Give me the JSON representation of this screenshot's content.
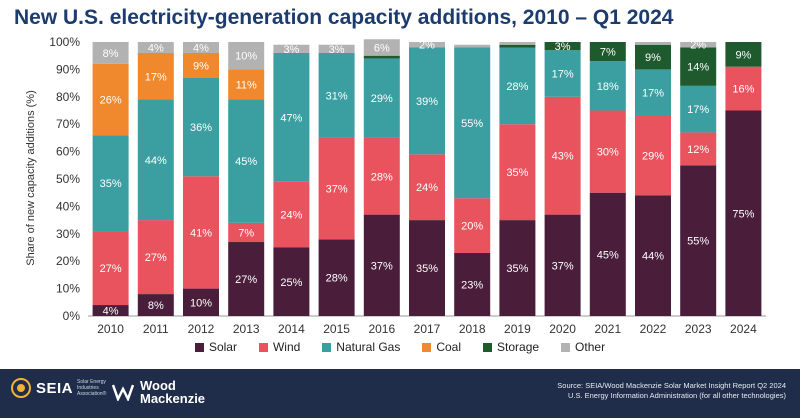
{
  "title": "New U.S. electricity-generation capacity additions, 2010 – Q1 2024",
  "chart_data": {
    "type": "bar",
    "stacked": true,
    "categories": [
      "2010",
      "2011",
      "2012",
      "2013",
      "2014",
      "2015",
      "2016",
      "2017",
      "2018",
      "2019",
      "2020",
      "2021",
      "2022",
      "2023",
      "2024"
    ],
    "ylabel": "Share of new capacity additions (%)",
    "ylim": [
      0,
      100
    ],
    "yticks": [
      "0%",
      "10%",
      "20%",
      "30%",
      "40%",
      "50%",
      "60%",
      "70%",
      "80%",
      "90%",
      "100%"
    ],
    "grid": false,
    "legend_position": "bottom",
    "series": [
      {
        "name": "Solar",
        "color": "#4a1e3b",
        "values": [
          4,
          8,
          10,
          27,
          25,
          28,
          37,
          35,
          23,
          35,
          37,
          45,
          44,
          55,
          75
        ],
        "labels": [
          "4%",
          "8%",
          "10%",
          "27%",
          "25%",
          "28%",
          "37%",
          "35%",
          "23%",
          "35%",
          "37%",
          "45%",
          "44%",
          "55%",
          "75%"
        ]
      },
      {
        "name": "Wind",
        "color": "#e8535e",
        "values": [
          27,
          27,
          41,
          7,
          24,
          37,
          28,
          24,
          20,
          35,
          43,
          30,
          29,
          12,
          16
        ],
        "labels": [
          "27%",
          "27%",
          "41%",
          "7%",
          "24%",
          "37%",
          "28%",
          "24%",
          "20%",
          "35%",
          "43%",
          "30%",
          "29%",
          "12%",
          "16%"
        ]
      },
      {
        "name": "Natural Gas",
        "color": "#3b9ea0",
        "values": [
          35,
          44,
          36,
          45,
          47,
          31,
          29,
          39,
          55,
          28,
          17,
          18,
          17,
          17,
          0
        ],
        "labels": [
          "35%",
          "44%",
          "36%",
          "45%",
          "47%",
          "31%",
          "29%",
          "39%",
          "55%",
          "28%",
          "17%",
          "18%",
          "17%",
          "17%",
          ""
        ]
      },
      {
        "name": "Coal",
        "color": "#f0892e",
        "values": [
          26,
          17,
          9,
          11,
          0,
          0,
          0,
          0,
          0,
          0,
          0,
          0,
          0,
          0,
          0
        ],
        "labels": [
          "26%",
          "17%",
          "9%",
          "11%",
          "",
          "",
          "",
          "",
          "",
          "",
          "",
          "",
          "",
          "",
          ""
        ]
      },
      {
        "name": "Storage",
        "color": "#1e5a2e",
        "values": [
          0,
          0,
          0,
          0,
          0,
          0,
          1,
          0,
          0,
          1,
          3,
          7,
          9,
          14,
          9
        ],
        "labels": [
          "",
          "",
          "",
          "",
          "",
          "",
          "",
          "",
          "",
          "",
          "3%",
          "7%",
          "9%",
          "14%",
          "9%"
        ]
      },
      {
        "name": "Other",
        "color": "#b2b2b2",
        "values": [
          8,
          4,
          4,
          10,
          3,
          3,
          6,
          2,
          1,
          1,
          0,
          0,
          1,
          2,
          0
        ],
        "labels": [
          "8%",
          "4%",
          "4%",
          "10%",
          "3%",
          "3%",
          "6%",
          "2%",
          "",
          "",
          "",
          "",
          "",
          "2%",
          ""
        ]
      }
    ]
  },
  "footer": {
    "seia_logo": "SEIA",
    "seia_tagline": "Solar Energy Industries Association®",
    "wm_logo": "Wood Mackenzie",
    "source_line1": "Source: SEIA/Wood Mackenzie Solar Market Insight Report  Q2 2024",
    "source_line2": "U.S. Energy Information Administration (for all other technologies)"
  }
}
